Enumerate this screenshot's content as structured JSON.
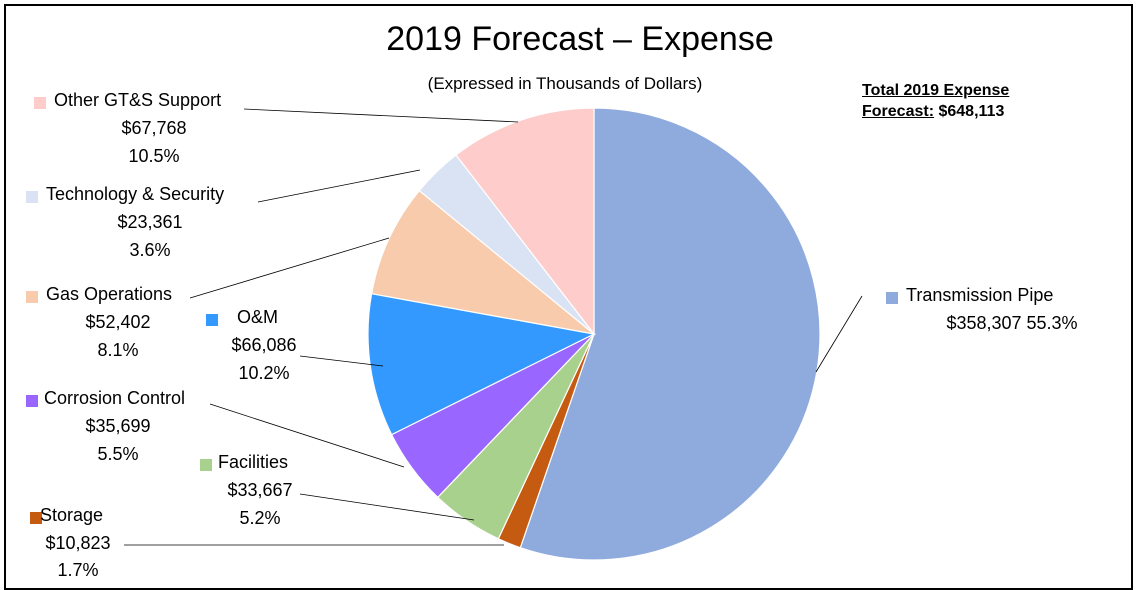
{
  "chart_data": {
    "type": "pie",
    "title": "2019 Forecast – Expense",
    "subtitle": "(Expressed in Thousands of Dollars)",
    "total_label": "Total 2019 Expense",
    "total_label_2": "Forecast:",
    "total_value": "$648,113",
    "slices": [
      {
        "name": "Transmission Pipe",
        "value": 358307,
        "value_label": "$358,307",
        "percent_label": "55.3%",
        "color": "#8faadc"
      },
      {
        "name": "Storage",
        "value": 10823,
        "value_label": "$10,823",
        "percent_label": "1.7%",
        "color": "#c55a11"
      },
      {
        "name": "Facilities",
        "value": 33667,
        "value_label": "$33,667",
        "percent_label": "5.2%",
        "color": "#a9d18e"
      },
      {
        "name": "Corrosion Control",
        "value": 35699,
        "value_label": "$35,699",
        "percent_label": "5.5%",
        "color": "#9966ff"
      },
      {
        "name": "O&M",
        "value": 66086,
        "value_label": "$66,086",
        "percent_label": "10.2%",
        "color": "#3399ff"
      },
      {
        "name": "Gas Operations",
        "value": 52402,
        "value_label": "$52,402",
        "percent_label": "8.1%",
        "color": "#f8cbad"
      },
      {
        "name": "Technology & Security",
        "value": 23361,
        "value_label": "$23,361",
        "percent_label": "3.6%",
        "color": "#dae3f3"
      },
      {
        "name": "Other GT&S Support",
        "value": 67768,
        "value_label": "$67,768",
        "percent_label": "10.5%",
        "color": "#ffcccc"
      }
    ]
  }
}
